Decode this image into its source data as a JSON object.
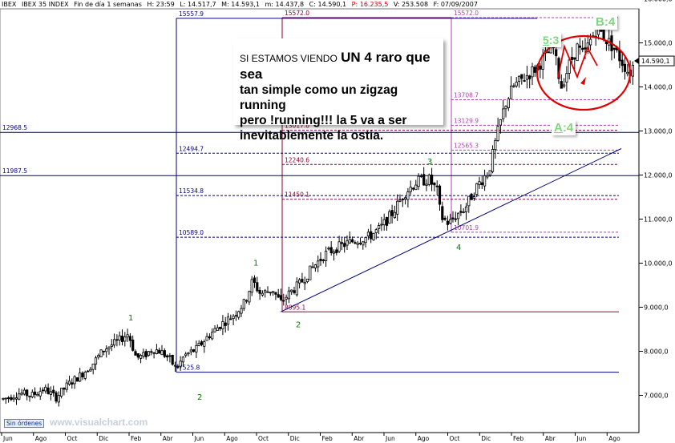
{
  "header": {
    "symbol": "IBEX",
    "name": "IBEX 35 INDEX",
    "period": "Fin de día 1 semanas",
    "hour": "H: 23:59",
    "last": "L: 14.517,7",
    "max": "M: 14.593,1",
    "min": "m: 14.437,8",
    "close": "C: 14.590,1",
    "pivot": "P: 16.235,5",
    "volume": "V: 253.508",
    "date": "F: 07/09/2007"
  },
  "annotation": {
    "line1_small": "SI ESTAMOS VIENDO",
    "line1_big": "UN 4 raro que sea",
    "line2": "tan simple como un zigzag running",
    "line3": "pero !running!!! la 5 va a ser",
    "line4": "inevitablemente la ostia."
  },
  "wave_boxes": {
    "five_three": {
      "pre": "5",
      "post": ":3"
    },
    "b_four": "B:4",
    "a_four": {
      "pre": "A",
      "post": ":4"
    }
  },
  "footer": {
    "button": "Sin órdenes",
    "watermark": "www.visualchart.com"
  },
  "colors": {
    "up_candle": "#000000",
    "blue_lines": "#00007f",
    "fib_red": "#8b0033",
    "fib_purple": "#b040b0",
    "circle": "#e00000",
    "wave_count": "#007a00",
    "price_tag_border": "#000000"
  },
  "chart_data": {
    "type": "candlestick",
    "ylim": [
      6500,
      16100
    ],
    "y_axis_side": "right",
    "y_ticks": [
      "16.000,0",
      "15.000,0",
      "14.000,0",
      "13.000,0",
      "12.000,0",
      "11.000,0",
      "10.000,0",
      "9.000,0",
      "8.000,0",
      "7.000,0"
    ],
    "y_tick_values": [
      16000,
      15000,
      14000,
      13000,
      12000,
      11000,
      10000,
      9000,
      8000,
      7000
    ],
    "last_price_label": "14.590,1",
    "last_price": 14590,
    "x_month_labels": [
      "Jun",
      "Ago",
      "Oct",
      "Dic",
      "Feb",
      "Abr",
      "Jun",
      "Ago",
      "Oct",
      "Dic",
      "Feb",
      "Abr",
      "Jun",
      "Ago",
      "Oct",
      "Dic",
      "Feb",
      "Abr",
      "Jun",
      "Ago"
    ],
    "price_path": [
      [
        0,
        6900
      ],
      [
        10,
        6950
      ],
      [
        25,
        7050
      ],
      [
        40,
        7000
      ],
      [
        55,
        7150
      ],
      [
        70,
        6950
      ],
      [
        85,
        7250
      ],
      [
        100,
        7450
      ],
      [
        115,
        7700
      ],
      [
        130,
        8050
      ],
      [
        145,
        8200
      ],
      [
        160,
        8400
      ],
      [
        170,
        7850
      ],
      [
        180,
        7900
      ],
      [
        190,
        8050
      ],
      [
        200,
        8000
      ],
      [
        210,
        7850
      ],
      [
        220,
        7600
      ],
      [
        230,
        7900
      ],
      [
        245,
        8050
      ],
      [
        260,
        8350
      ],
      [
        275,
        8600
      ],
      [
        290,
        8800
      ],
      [
        305,
        9100
      ],
      [
        315,
        9600
      ],
      [
        325,
        9300
      ],
      [
        340,
        9400
      ],
      [
        350,
        9100
      ],
      [
        360,
        9300
      ],
      [
        375,
        9550
      ],
      [
        390,
        9900
      ],
      [
        405,
        10200
      ],
      [
        420,
        10350
      ],
      [
        440,
        10500
      ],
      [
        460,
        10600
      ],
      [
        475,
        10800
      ],
      [
        490,
        11150
      ],
      [
        505,
        11600
      ],
      [
        520,
        11850
      ],
      [
        535,
        11900
      ],
      [
        545,
        11650
      ],
      [
        550,
        11050
      ],
      [
        560,
        10900
      ],
      [
        570,
        11100
      ],
      [
        580,
        11250
      ],
      [
        595,
        11750
      ],
      [
        610,
        12100
      ],
      [
        620,
        12900
      ],
      [
        630,
        13600
      ],
      [
        640,
        14000
      ],
      [
        650,
        14150
      ],
      [
        660,
        14300
      ],
      [
        670,
        14450
      ],
      [
        680,
        14700
      ],
      [
        690,
        14900
      ],
      [
        700,
        14000
      ],
      [
        710,
        14500
      ],
      [
        720,
        14900
      ],
      [
        728,
        14700
      ],
      [
        735,
        15000
      ],
      [
        745,
        15350
      ],
      [
        755,
        15100
      ],
      [
        765,
        14900
      ],
      [
        775,
        14600
      ],
      [
        785,
        14300
      ],
      [
        792,
        14590
      ]
    ],
    "horizontal_levels": [
      {
        "label": "12968,5",
        "value": 12968.5,
        "style": "solid",
        "color": "blue",
        "from": "left-edge"
      },
      {
        "label": "11987,5",
        "value": 11987.5,
        "style": "solid",
        "color": "blue",
        "from": "left-edge"
      },
      {
        "label": "12494,7",
        "value": 12494.7,
        "style": "dashed",
        "color": "blue"
      },
      {
        "label": "11534,8",
        "value": 11534.8,
        "style": "dashed",
        "color": "blue"
      },
      {
        "label": "10589,0",
        "value": 10589.0,
        "style": "dashed",
        "color": "blue"
      },
      {
        "label": "7525,8",
        "value": 7525.8,
        "style": "solid",
        "color": "blue"
      },
      {
        "label": "15557,9",
        "value": 15557.9,
        "style": "solid",
        "color": "blue"
      },
      {
        "label": "13017,0",
        "value": 13017.0,
        "style": "dashed",
        "color": "red"
      },
      {
        "label": "12240,6",
        "value": 12240.6,
        "style": "dashed",
        "color": "red"
      },
      {
        "label": "11450,1",
        "value": 11450.1,
        "style": "dashed",
        "color": "red"
      },
      {
        "label": "8895,1",
        "value": 8895.1,
        "style": "solid",
        "color": "red"
      },
      {
        "label": "15572,0",
        "value": 15572.0,
        "style": "solid",
        "color": "red"
      },
      {
        "label": "15572,0",
        "value": 15572.0,
        "style": "dashed",
        "color": "purple"
      },
      {
        "label": "13708,7",
        "value": 13708.7,
        "style": "dashed",
        "color": "purple"
      },
      {
        "label": "13129,9",
        "value": 13129.9,
        "style": "dashed",
        "color": "purple"
      },
      {
        "label": "12565,3",
        "value": 12565.3,
        "style": "dashed",
        "color": "purple"
      },
      {
        "label": "10701,9",
        "value": 10701.9,
        "style": "dashed",
        "color": "purple"
      }
    ],
    "trendline": {
      "from": [
        350,
        8895
      ],
      "to": [
        775,
        12600
      ]
    },
    "wave_counts": [
      {
        "label": "1",
        "x": 160,
        "y": 8700
      },
      {
        "label": "2",
        "x": 246,
        "y": 6900
      },
      {
        "label": "1",
        "x": 316,
        "y": 9950
      },
      {
        "label": "2",
        "x": 369,
        "y": 8550
      },
      {
        "label": "3",
        "x": 533,
        "y": 12250
      },
      {
        "label": "4",
        "x": 569,
        "y": 10300
      },
      {
        "label": "5",
        "x": 696,
        "y": 16000
      }
    ]
  }
}
